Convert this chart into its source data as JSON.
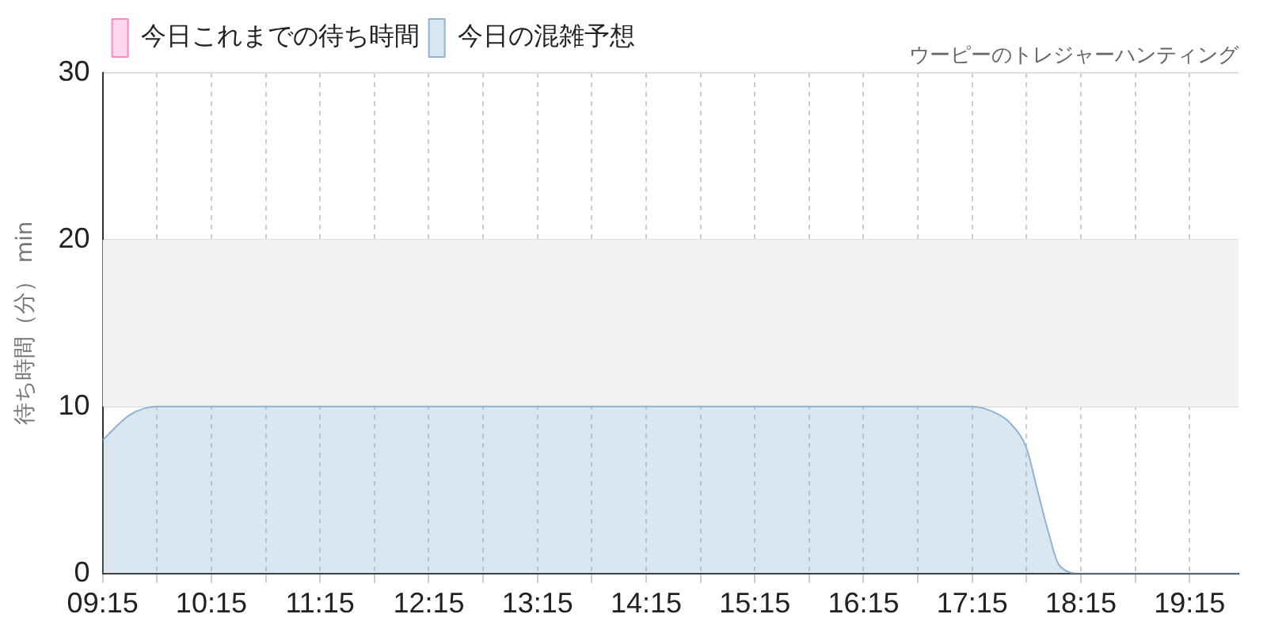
{
  "chart_data": {
    "type": "area",
    "subtitle": "ウーピーのトレジャーハンティング",
    "ylabel": "待ち時間（分） min",
    "series": [
      {
        "name": "今日これまでの待ち時間",
        "color": "#ff88c8"
      },
      {
        "name": "今日の混雑予想",
        "color": "#8fb3d3",
        "x": [
          9.25,
          9.5,
          9.75,
          10,
          11,
          12,
          13,
          14,
          15,
          16,
          17,
          17.25,
          17.5,
          17.6,
          17.75,
          17.85,
          17.95,
          18.05,
          18.25,
          19,
          19.7
        ],
        "values": [
          8,
          9.5,
          10,
          10,
          10,
          10,
          10,
          10,
          10,
          10,
          10,
          10,
          9.5,
          9,
          7.5,
          5,
          2.5,
          0.5,
          0,
          0,
          0
        ]
      }
    ],
    "xlim": [
      9.25,
      19.7
    ],
    "xticks": [
      {
        "value": 9.25,
        "label": "09:15"
      },
      {
        "value": 9.75,
        "label": null
      },
      {
        "value": 10.25,
        "label": "10:15"
      },
      {
        "value": 10.75,
        "label": null
      },
      {
        "value": 11.25,
        "label": "11:15"
      },
      {
        "value": 11.75,
        "label": null
      },
      {
        "value": 12.25,
        "label": "12:15"
      },
      {
        "value": 12.75,
        "label": null
      },
      {
        "value": 13.25,
        "label": "13:15"
      },
      {
        "value": 13.75,
        "label": null
      },
      {
        "value": 14.25,
        "label": "14:15"
      },
      {
        "value": 14.75,
        "label": null
      },
      {
        "value": 15.25,
        "label": "15:15"
      },
      {
        "value": 15.75,
        "label": null
      },
      {
        "value": 16.25,
        "label": "16:15"
      },
      {
        "value": 16.75,
        "label": null
      },
      {
        "value": 17.25,
        "label": "17:15"
      },
      {
        "value": 17.75,
        "label": null
      },
      {
        "value": 18.25,
        "label": "18:15"
      },
      {
        "value": 18.75,
        "label": null
      },
      {
        "value": 19.25,
        "label": "19:15"
      }
    ],
    "ylim": [
      0,
      30
    ],
    "yticks": [
      0,
      10,
      20,
      30
    ],
    "bands": [
      {
        "axis": "y",
        "from": 10,
        "to": 20,
        "color": "#f2f2f2"
      }
    ],
    "grid": true,
    "legend": "top left",
    "marker": "none"
  }
}
